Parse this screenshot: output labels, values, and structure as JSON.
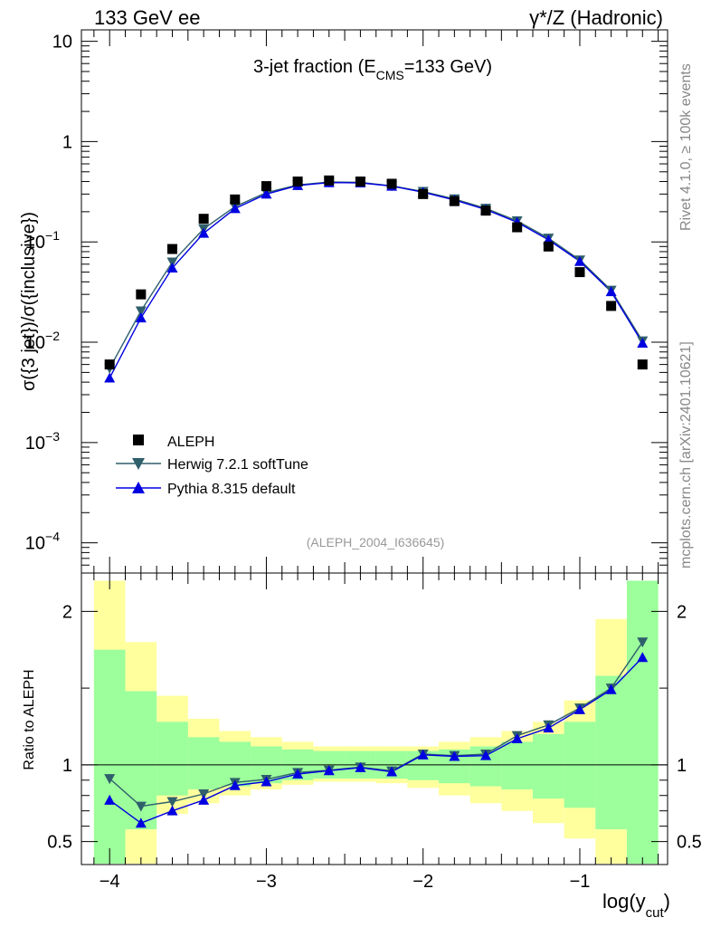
{
  "header": {
    "left": "133 GeV ee",
    "right": "γ*/Z (Hadronic)"
  },
  "side": {
    "rivet": "Rivet 4.1.0, ≥ 100k events",
    "mcplots": "mcplots.cern.ch [arXiv:2401.10621]"
  },
  "chart_data": [
    {
      "type": "scatter",
      "title_main": "3-jet fraction (E",
      "title_sub": "CMS",
      "title_tail": "=133 GeV)",
      "analysis_id": "(ALEPH_2004_I636645)",
      "ylabel": "σ({3 jet})/σ({inclusive})",
      "yscale": "log",
      "ylim": [
        5e-05,
        13
      ],
      "xlim": [
        -4.18,
        -0.44
      ],
      "y_ticks": [
        {
          "v": 10,
          "label": "10"
        },
        {
          "v": 1,
          "label": "1"
        },
        {
          "v": 0.1,
          "label": "10",
          "exp": "−1"
        },
        {
          "v": 0.01,
          "label": "10",
          "exp": "−2"
        },
        {
          "v": 0.001,
          "label": "10",
          "exp": "−3"
        },
        {
          "v": 0.0001,
          "label": "10",
          "exp": "−4"
        }
      ],
      "x": [
        -4.0,
        -3.8,
        -3.6,
        -3.4,
        -3.2,
        -3.0,
        -2.8,
        -2.6,
        -2.4,
        -2.2,
        -2.0,
        -1.8,
        -1.6,
        -1.4,
        -1.2,
        -1.0,
        -0.8,
        -0.6
      ],
      "series": [
        {
          "name": "ALEPH",
          "marker": "square",
          "color": "#000000",
          "values": [
            0.006,
            0.03,
            0.085,
            0.17,
            0.265,
            0.36,
            0.4,
            0.41,
            0.4,
            0.38,
            0.3,
            0.255,
            0.205,
            0.14,
            0.09,
            0.05,
            0.023,
            0.006
          ]
        },
        {
          "name": "Herwig 7.2.1 softTune",
          "marker": "triangle-down",
          "color": "#2f5f6b",
          "values": [
            0.0055,
            0.0205,
            0.063,
            0.135,
            0.225,
            0.31,
            0.37,
            0.395,
            0.393,
            0.362,
            0.318,
            0.268,
            0.216,
            0.162,
            0.109,
            0.066,
            0.033,
            0.0103
          ]
        },
        {
          "name": "Pythia 8.315 default",
          "marker": "triangle-up",
          "color": "#0000e0",
          "values": [
            0.0044,
            0.0175,
            0.055,
            0.122,
            0.215,
            0.3,
            0.365,
            0.39,
            0.388,
            0.36,
            0.313,
            0.262,
            0.21,
            0.157,
            0.105,
            0.064,
            0.032,
            0.0098
          ]
        }
      ]
    },
    {
      "type": "line",
      "ylabel": "Ratio to ALEPH",
      "xlabel_main": "log(y",
      "xlabel_sub": "cut",
      "xlabel_tail": ")",
      "ylim": [
        0.35,
        2.25
      ],
      "xlim": [
        -4.18,
        -0.44
      ],
      "x_ticks": [
        {
          "v": -4,
          "label": "−4"
        },
        {
          "v": -3,
          "label": "−3"
        },
        {
          "v": -2,
          "label": "−2"
        },
        {
          "v": -1,
          "label": "−1"
        }
      ],
      "y_ticks": [
        {
          "v": 2,
          "label": "2"
        },
        {
          "v": 1,
          "label": "1"
        },
        {
          "v": 0.5,
          "label": "0.5"
        }
      ],
      "bin_edges": [
        -4.1,
        -3.9,
        -3.7,
        -3.5,
        -3.3,
        -3.1,
        -2.9,
        -2.7,
        -2.5,
        -2.3,
        -2.1,
        -1.9,
        -1.7,
        -1.5,
        -1.3,
        -1.1,
        -0.9,
        -0.7,
        -0.5
      ],
      "band_yellow_hi": [
        2.2,
        1.8,
        1.45,
        1.3,
        1.22,
        1.18,
        1.15,
        1.12,
        1.12,
        1.12,
        1.12,
        1.15,
        1.18,
        1.22,
        1.28,
        1.42,
        1.95,
        2.2
      ],
      "band_yellow_lo": [
        0.35,
        0.35,
        0.68,
        0.75,
        0.8,
        0.84,
        0.87,
        0.89,
        0.89,
        0.88,
        0.85,
        0.8,
        0.75,
        0.7,
        0.62,
        0.52,
        0.35,
        0.35
      ],
      "band_green_hi": [
        1.75,
        1.48,
        1.28,
        1.18,
        1.15,
        1.12,
        1.1,
        1.09,
        1.09,
        1.09,
        1.09,
        1.1,
        1.12,
        1.15,
        1.2,
        1.28,
        1.58,
        2.2
      ],
      "band_green_lo": [
        0.35,
        0.58,
        0.8,
        0.84,
        0.86,
        0.88,
        0.9,
        0.91,
        0.91,
        0.91,
        0.9,
        0.88,
        0.86,
        0.84,
        0.78,
        0.72,
        0.58,
        0.35
      ],
      "series": [
        {
          "name": "Herwig 7.2.1 softTune",
          "color": "#2f5f6b",
          "values": [
            0.91,
            0.73,
            0.76,
            0.81,
            0.885,
            0.905,
            0.95,
            0.965,
            0.985,
            0.96,
            1.07,
            1.06,
            1.07,
            1.19,
            1.26,
            1.37,
            1.5,
            1.8
          ]
        },
        {
          "name": "Pythia 8.315 default",
          "color": "#0000e0",
          "values": [
            0.77,
            0.62,
            0.7,
            0.77,
            0.865,
            0.89,
            0.94,
            0.962,
            0.982,
            0.955,
            1.065,
            1.055,
            1.06,
            1.17,
            1.24,
            1.36,
            1.49,
            1.7
          ]
        }
      ]
    }
  ]
}
